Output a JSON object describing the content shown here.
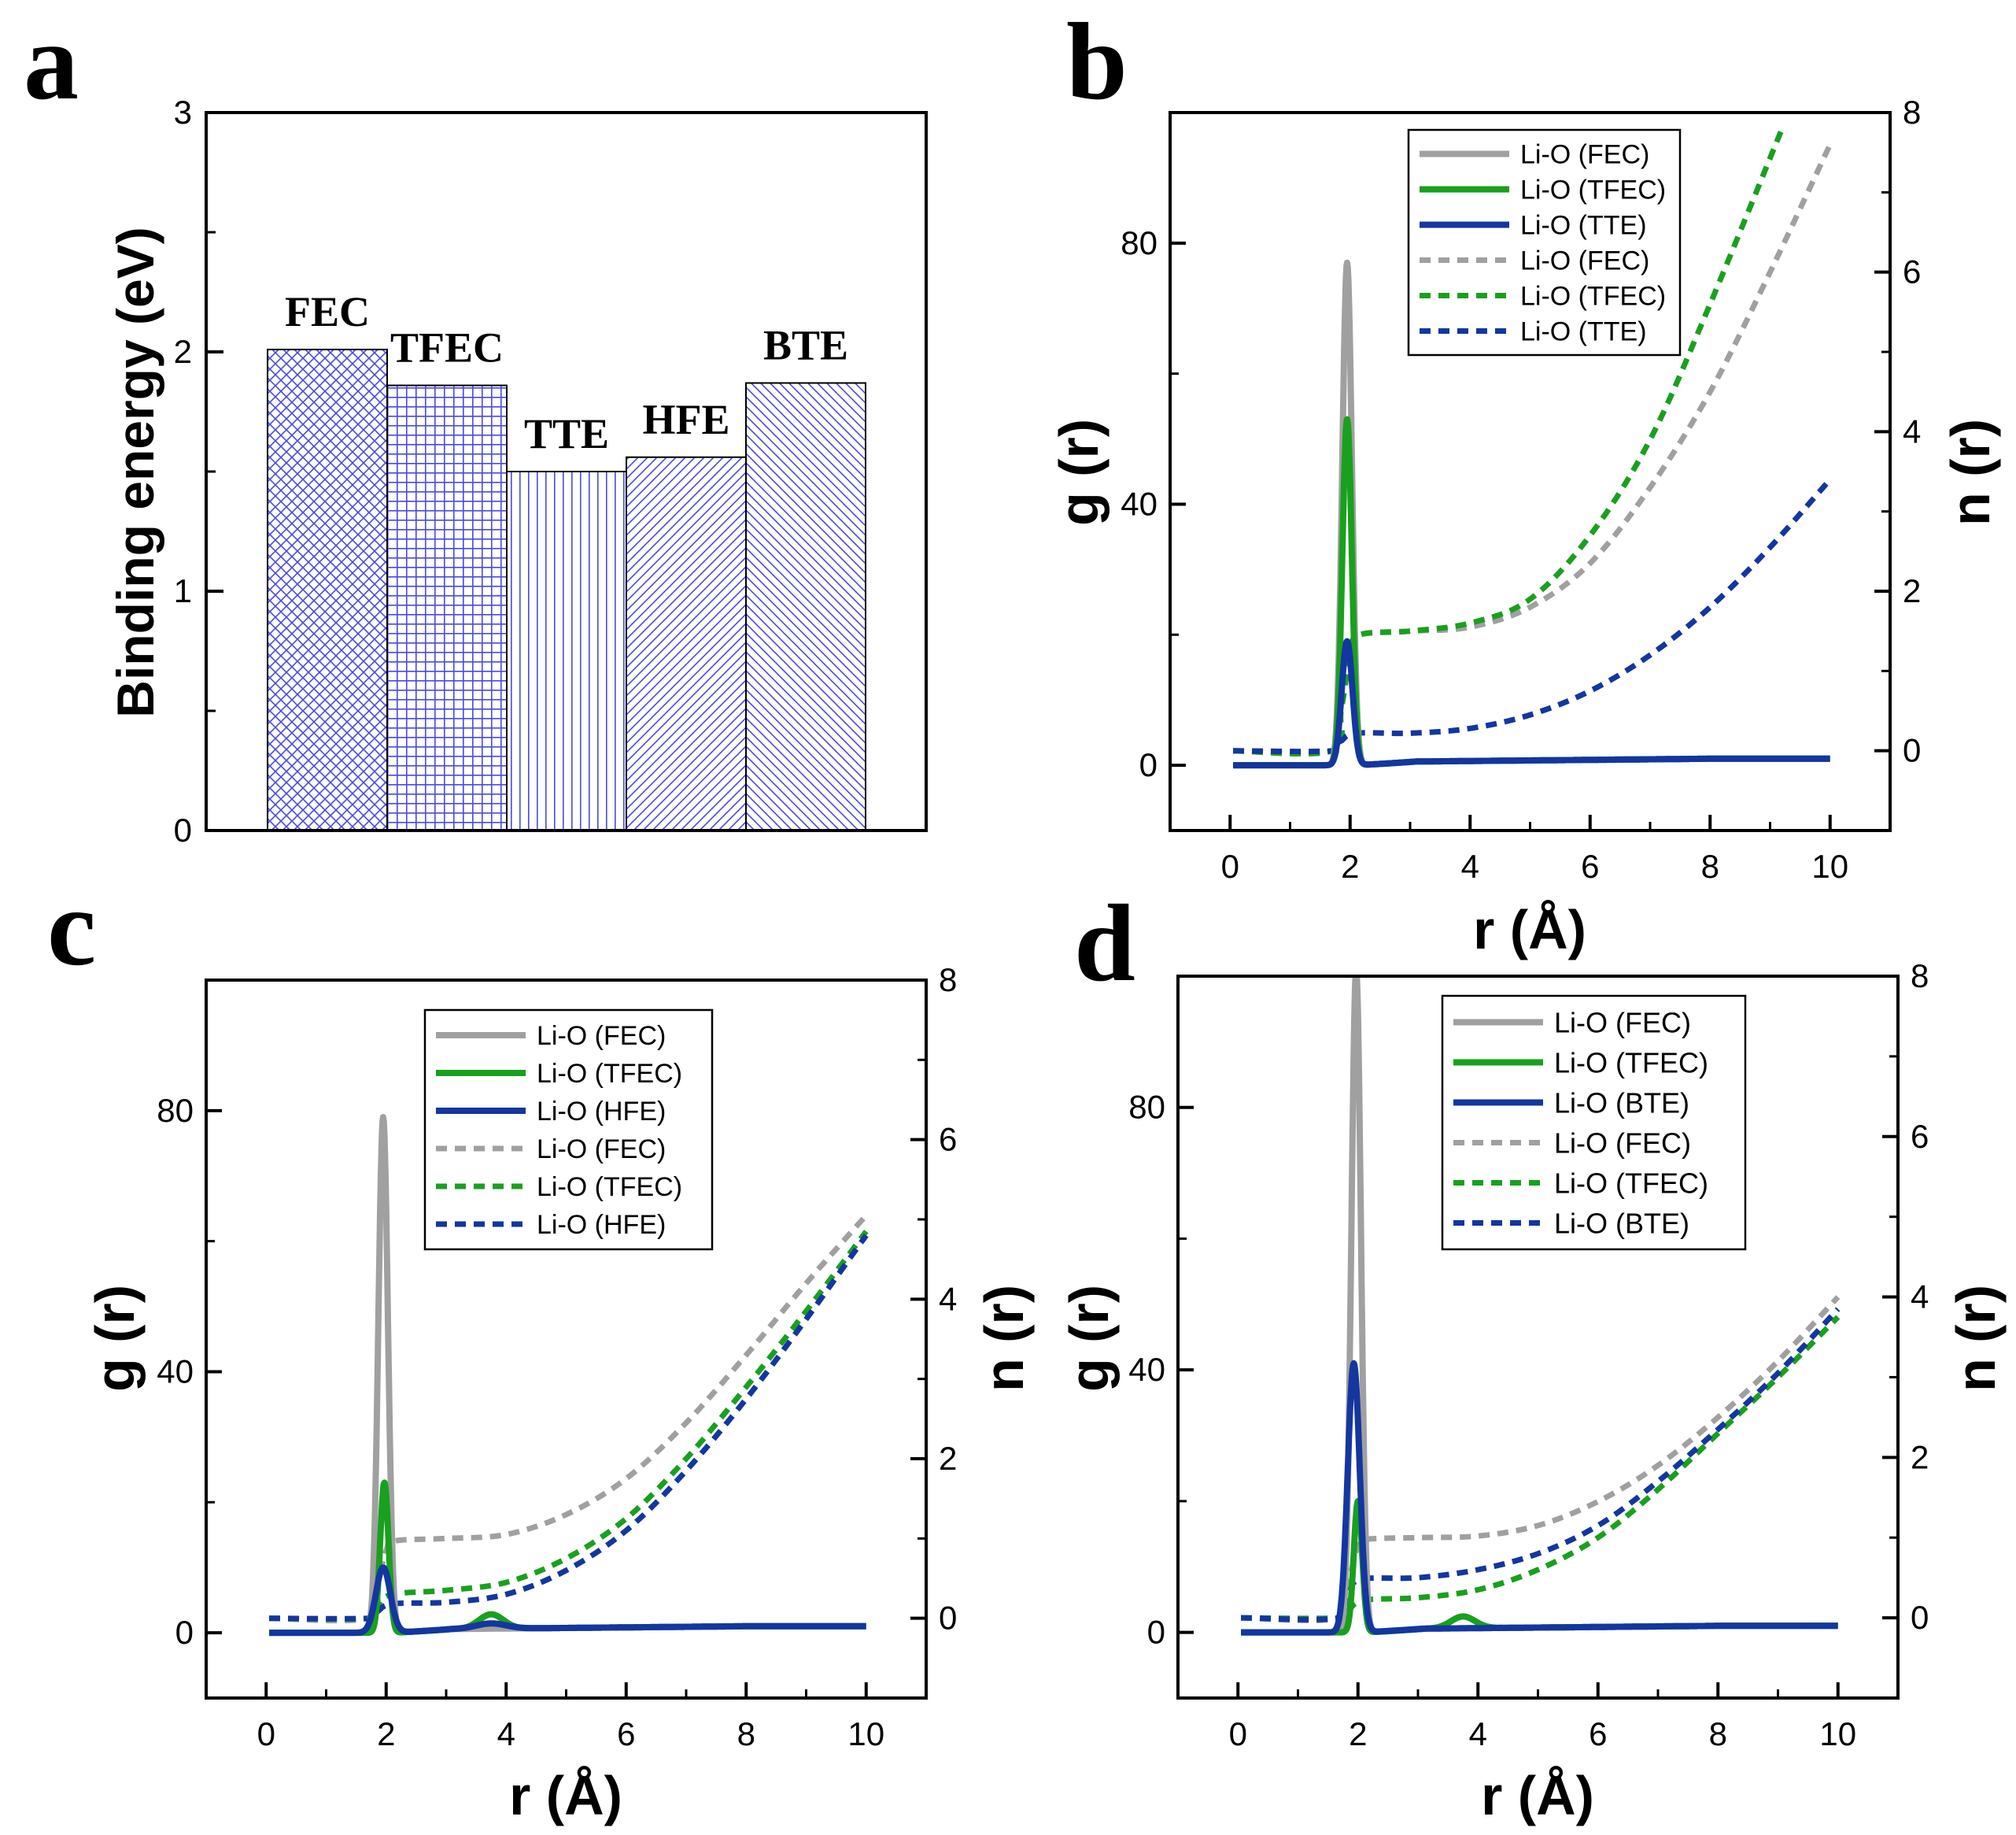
{
  "chart_data": [
    {
      "panel": "a",
      "type": "bar",
      "ylabel": "Binding energy (eV)",
      "ylim": [
        0,
        3
      ],
      "yticks": [
        "0",
        "1",
        "2",
        "3"
      ],
      "categories": [
        "FEC",
        "TFEC",
        "TTE",
        "HFE",
        "BTE"
      ],
      "values": [
        2.01,
        1.86,
        1.5,
        1.56,
        1.87
      ],
      "bar_color": "#4a4ae0"
    },
    {
      "panel": "b",
      "type": "line",
      "xlabel": "r (Å)",
      "ylabel": "g (r)",
      "ylabel_right": "n (r)",
      "xlim": [
        -1,
        11
      ],
      "ylim": [
        -10,
        100
      ],
      "ylim_right": [
        -1,
        8
      ],
      "xticks": [
        "0",
        "2",
        "4",
        "6",
        "8",
        "10"
      ],
      "yticks": [
        "0",
        "40",
        "80"
      ],
      "yticks_right": [
        "0",
        "2",
        "4",
        "6",
        "8"
      ],
      "legend": [
        "Li-O (FEC)",
        "Li-O (TFEC)",
        "Li-O (TTE)",
        "Li-O (FEC)",
        "Li-O (TFEC)",
        "Li-O (TTE)"
      ],
      "series": [
        {
          "name": "Li-O (FEC)",
          "axis": "left",
          "style": "solid",
          "color": "#a0a0a0",
          "peak": {
            "x": 1.95,
            "y": 77,
            "w": 0.08
          },
          "tail": 1.0,
          "bump": null
        },
        {
          "name": "Li-O (TFEC)",
          "axis": "left",
          "style": "solid",
          "color": "#19a01e",
          "peak": {
            "x": 1.95,
            "y": 53,
            "w": 0.08
          },
          "tail": 1.0,
          "bump": null
        },
        {
          "name": "Li-O (TTE)",
          "axis": "left",
          "style": "solid",
          "color": "#1336a0",
          "peak": {
            "x": 1.95,
            "y": 19,
            "w": 0.09
          },
          "tail": 1.0,
          "bump": null
        },
        {
          "name": "Li-O (FEC)",
          "axis": "right",
          "style": "dashed",
          "color": "#a0a0a0",
          "points": [
            [
              0.05,
              0.0
            ],
            [
              1.7,
              0.0
            ],
            [
              1.85,
              0.5
            ],
            [
              2.0,
              1.2
            ],
            [
              2.15,
              1.45
            ],
            [
              3.0,
              1.5
            ],
            [
              4.0,
              1.55
            ],
            [
              5.0,
              1.8
            ],
            [
              6.0,
              2.35
            ],
            [
              7.0,
              3.3
            ],
            [
              8.0,
              4.5
            ],
            [
              9.0,
              6.0
            ],
            [
              10.0,
              7.6
            ]
          ]
        },
        {
          "name": "Li-O (TFEC)",
          "axis": "right",
          "style": "dashed",
          "color": "#19a01e",
          "points": [
            [
              0.05,
              0.0
            ],
            [
              1.7,
              0.0
            ],
            [
              1.85,
              0.5
            ],
            [
              2.0,
              1.2
            ],
            [
              2.15,
              1.45
            ],
            [
              3.0,
              1.5
            ],
            [
              4.0,
              1.6
            ],
            [
              5.0,
              1.9
            ],
            [
              6.0,
              2.7
            ],
            [
              7.0,
              3.9
            ],
            [
              8.0,
              5.6
            ],
            [
              9.2,
              7.8
            ]
          ]
        },
        {
          "name": "Li-O (TTE)",
          "axis": "right",
          "style": "dashed",
          "color": "#1336a0",
          "points": [
            [
              0.05,
              0.0
            ],
            [
              1.7,
              0.0
            ],
            [
              1.85,
              0.12
            ],
            [
              2.1,
              0.22
            ],
            [
              3.0,
              0.22
            ],
            [
              4.0,
              0.28
            ],
            [
              5.0,
              0.45
            ],
            [
              6.0,
              0.75
            ],
            [
              7.0,
              1.2
            ],
            [
              8.0,
              1.8
            ],
            [
              9.0,
              2.55
            ],
            [
              10.0,
              3.4
            ]
          ]
        }
      ]
    },
    {
      "panel": "c",
      "type": "line",
      "xlabel": "r (Å)",
      "ylabel": "g (r)",
      "ylabel_right": "n (r)",
      "xlim": [
        -1,
        11
      ],
      "ylim": [
        -10,
        100
      ],
      "ylim_right": [
        -1,
        8
      ],
      "xticks": [
        "0",
        "2",
        "4",
        "6",
        "8",
        "10"
      ],
      "yticks": [
        "0",
        "40",
        "80"
      ],
      "yticks_right": [
        "0",
        "2",
        "4",
        "6",
        "8"
      ],
      "legend": [
        "Li-O (FEC)",
        "Li-O (TFEC)",
        "Li-O (HFE)",
        "Li-O (FEC)",
        "Li-O (TFEC)",
        "Li-O (HFE)"
      ],
      "series": [
        {
          "name": "Li-O (FEC)",
          "axis": "left",
          "style": "solid",
          "color": "#a0a0a0",
          "peak": {
            "x": 1.95,
            "y": 79,
            "w": 0.08
          },
          "tail": 1.0,
          "bump": null
        },
        {
          "name": "Li-O (TFEC)",
          "axis": "left",
          "style": "solid",
          "color": "#19a01e",
          "peak": {
            "x": 1.97,
            "y": 23,
            "w": 0.07
          },
          "tail": 1.0,
          "bump": {
            "x": 3.75,
            "y": 2.2,
            "w": 0.2
          }
        },
        {
          "name": "Li-O (HFE)",
          "axis": "left",
          "style": "solid",
          "color": "#1336a0",
          "peak": {
            "x": 1.95,
            "y": 10,
            "w": 0.12
          },
          "tail": 1.0,
          "bump": {
            "x": 3.75,
            "y": 0.8,
            "w": 0.25
          }
        },
        {
          "name": "Li-O (FEC)",
          "axis": "right",
          "style": "dashed",
          "color": "#a0a0a0",
          "points": [
            [
              0.05,
              0.0
            ],
            [
              1.7,
              0.0
            ],
            [
              1.85,
              0.4
            ],
            [
              2.0,
              0.85
            ],
            [
              2.15,
              0.97
            ],
            [
              3.0,
              1.0
            ],
            [
              4.0,
              1.05
            ],
            [
              5.0,
              1.3
            ],
            [
              6.0,
              1.75
            ],
            [
              7.0,
              2.45
            ],
            [
              8.0,
              3.3
            ],
            [
              9.0,
              4.2
            ],
            [
              10.0,
              5.05
            ]
          ]
        },
        {
          "name": "Li-O (TFEC)",
          "axis": "right",
          "style": "dashed",
          "color": "#19a01e",
          "points": [
            [
              0.05,
              0.0
            ],
            [
              1.7,
              0.0
            ],
            [
              1.85,
              0.15
            ],
            [
              2.1,
              0.3
            ],
            [
              3.0,
              0.35
            ],
            [
              4.0,
              0.45
            ],
            [
              5.0,
              0.75
            ],
            [
              6.0,
              1.25
            ],
            [
              7.0,
              2.0
            ],
            [
              8.0,
              2.9
            ],
            [
              9.0,
              3.85
            ],
            [
              10.0,
              4.85
            ]
          ]
        },
        {
          "name": "Li-O (HFE)",
          "axis": "right",
          "style": "dashed",
          "color": "#1336a0",
          "points": [
            [
              0.05,
              0.0
            ],
            [
              1.7,
              0.0
            ],
            [
              1.85,
              0.08
            ],
            [
              2.1,
              0.18
            ],
            [
              3.0,
              0.2
            ],
            [
              4.0,
              0.3
            ],
            [
              5.0,
              0.6
            ],
            [
              6.0,
              1.1
            ],
            [
              7.0,
              1.85
            ],
            [
              8.0,
              2.75
            ],
            [
              9.0,
              3.75
            ],
            [
              10.0,
              4.8
            ]
          ]
        }
      ]
    },
    {
      "panel": "d",
      "type": "line",
      "xlabel": "r (Å)",
      "ylabel": "g (r)",
      "ylabel_right": "n (r)",
      "xlim": [
        -1,
        11
      ],
      "ylim": [
        -10,
        100
      ],
      "ylim_right": [
        -1,
        8
      ],
      "xticks": [
        "0",
        "2",
        "4",
        "6",
        "8",
        "10"
      ],
      "yticks": [
        "0",
        "40",
        "80"
      ],
      "yticks_right": [
        "0",
        "2",
        "4",
        "6",
        "8"
      ],
      "legend": [
        "Li-O (FEC)",
        "Li-O (TFEC)",
        "Li-O (BTE)",
        "Li-O (FEC)",
        "Li-O (TFEC)",
        "Li-O (BTE)"
      ],
      "series": [
        {
          "name": "Li-O (FEC)",
          "axis": "left",
          "style": "solid",
          "color": "#a0a0a0",
          "peak": {
            "x": 1.97,
            "y": 101,
            "w": 0.08
          },
          "tail": 1.0,
          "bump": null
        },
        {
          "name": "Li-O (TFEC)",
          "axis": "left",
          "style": "solid",
          "color": "#19a01e",
          "peak": {
            "x": 2.0,
            "y": 20,
            "w": 0.07
          },
          "tail": 1.0,
          "bump": {
            "x": 3.75,
            "y": 1.8,
            "w": 0.2
          }
        },
        {
          "name": "Li-O (BTE)",
          "axis": "left",
          "style": "solid",
          "color": "#1336a0",
          "peak": {
            "x": 1.93,
            "y": 41,
            "w": 0.1
          },
          "tail": 1.0,
          "bump": null
        },
        {
          "name": "Li-O (FEC)",
          "axis": "right",
          "style": "dashed",
          "color": "#a0a0a0",
          "points": [
            [
              0.05,
              0.0
            ],
            [
              1.7,
              0.0
            ],
            [
              1.85,
              0.45
            ],
            [
              2.0,
              0.9
            ],
            [
              2.15,
              0.98
            ],
            [
              3.0,
              1.0
            ],
            [
              4.0,
              1.02
            ],
            [
              5.0,
              1.15
            ],
            [
              6.0,
              1.45
            ],
            [
              7.0,
              1.9
            ],
            [
              8.0,
              2.5
            ],
            [
              9.0,
              3.2
            ],
            [
              10.0,
              4.0
            ]
          ]
        },
        {
          "name": "Li-O (TFEC)",
          "axis": "right",
          "style": "dashed",
          "color": "#19a01e",
          "points": [
            [
              0.05,
              0.0
            ],
            [
              1.7,
              0.0
            ],
            [
              1.85,
              0.1
            ],
            [
              2.1,
              0.22
            ],
            [
              3.0,
              0.25
            ],
            [
              4.0,
              0.35
            ],
            [
              5.0,
              0.6
            ],
            [
              6.0,
              1.0
            ],
            [
              7.0,
              1.6
            ],
            [
              8.0,
              2.3
            ],
            [
              9.0,
              3.0
            ],
            [
              10.0,
              3.75
            ]
          ]
        },
        {
          "name": "Li-O (BTE)",
          "axis": "right",
          "style": "dashed",
          "color": "#1336a0",
          "points": [
            [
              0.05,
              0.0
            ],
            [
              1.7,
              0.0
            ],
            [
              1.85,
              0.3
            ],
            [
              2.05,
              0.48
            ],
            [
              3.0,
              0.5
            ],
            [
              4.0,
              0.6
            ],
            [
              5.0,
              0.8
            ],
            [
              6.0,
              1.15
            ],
            [
              7.0,
              1.7
            ],
            [
              8.0,
              2.35
            ],
            [
              9.0,
              3.05
            ],
            [
              10.0,
              3.85
            ]
          ]
        }
      ]
    }
  ]
}
